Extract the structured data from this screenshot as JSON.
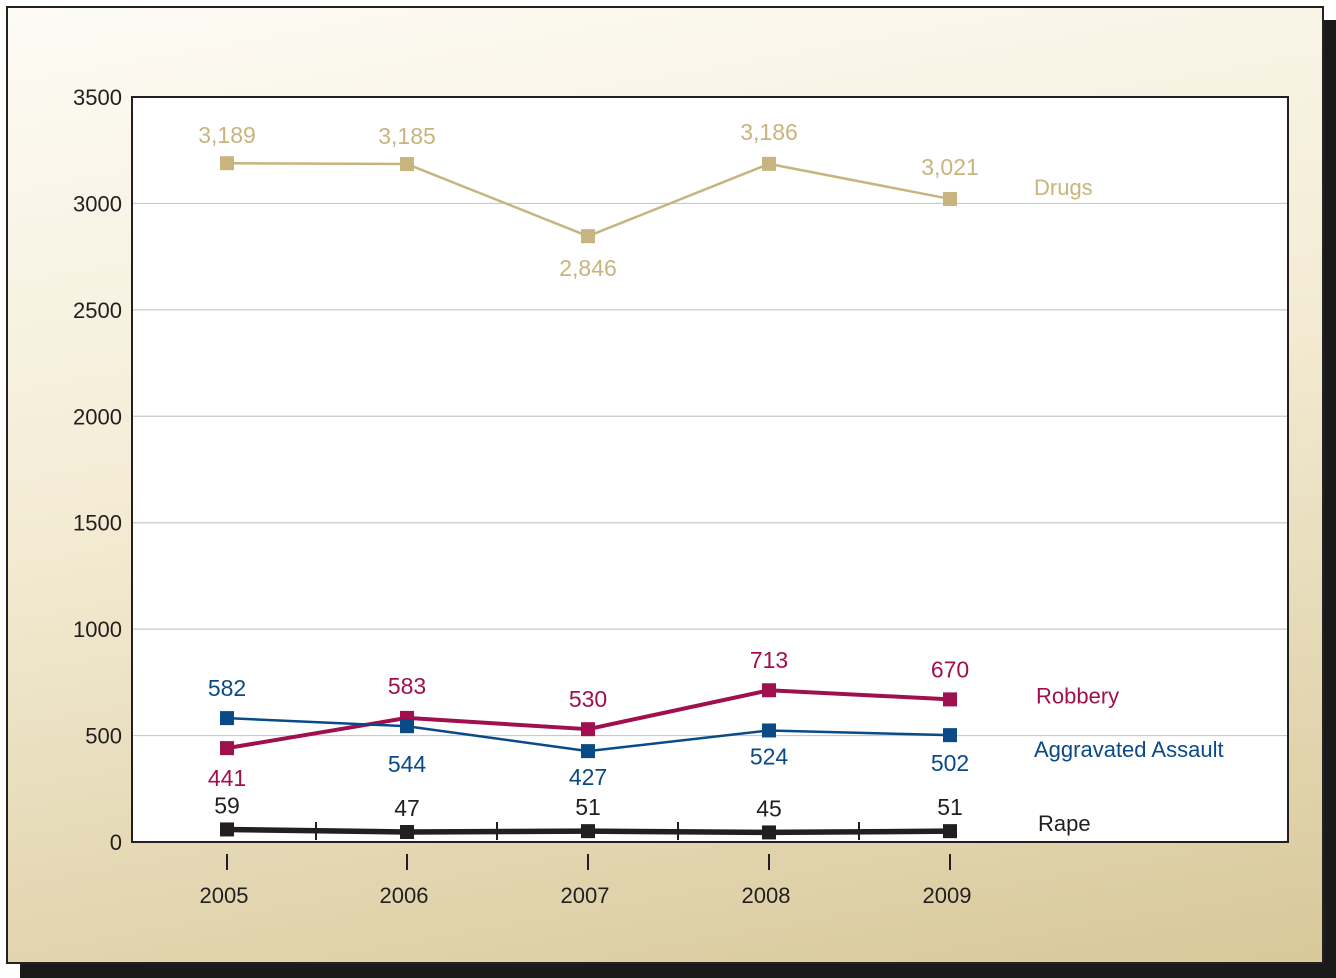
{
  "chart_data": {
    "type": "line",
    "title": "",
    "xlabel": "",
    "ylabel": "",
    "categories": [
      "2005",
      "2006",
      "2007",
      "2008",
      "2009"
    ],
    "ylim": [
      0,
      3500
    ],
    "yticks": [
      0,
      500,
      1000,
      1500,
      2000,
      2500,
      3000,
      3500
    ],
    "grid": true,
    "legend": "right, labels beside series ends",
    "series": [
      {
        "name": "Drugs",
        "values": [
          3189,
          3185,
          2846,
          3186,
          3021
        ],
        "labels": [
          "3,189",
          "3,185",
          "2,846",
          "3,186",
          "3,021"
        ],
        "color": "#c8b47e"
      },
      {
        "name": "Robbery",
        "values": [
          441,
          583,
          530,
          713,
          670
        ],
        "labels": [
          "441",
          "583",
          "530",
          "713",
          "670"
        ],
        "color": "#a0104e"
      },
      {
        "name": "Aggravated Assault",
        "values": [
          582,
          544,
          427,
          524,
          502
        ],
        "labels": [
          "582",
          "544",
          "427",
          "524",
          "502"
        ],
        "color": "#0a4a87"
      },
      {
        "name": "Rape",
        "values": [
          59,
          47,
          51,
          45,
          51
        ],
        "labels": [
          "59",
          "47",
          "51",
          "45",
          "51"
        ],
        "color": "#231f20"
      }
    ]
  }
}
